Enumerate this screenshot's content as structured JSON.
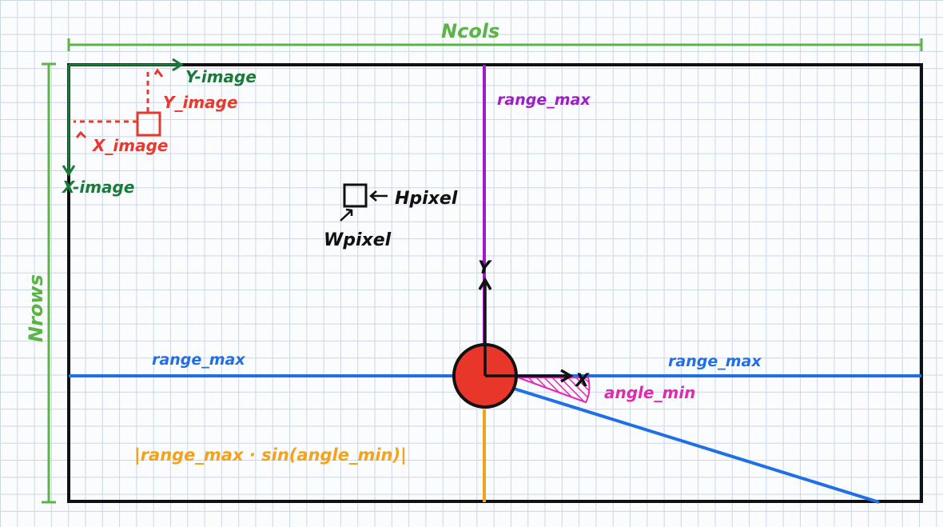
{
  "labels": {
    "n_cols": "Ncols",
    "n_rows": "Nrows",
    "y_image_axis": "Y-image",
    "x_image_axis": "X-image",
    "y_image_offset": "Y_image",
    "x_image_offset": "X_image",
    "h_pixel": "Hpixel",
    "w_pixel": "Wpixel",
    "range_max_vertical": "range_max",
    "range_max_left": "range_max",
    "range_max_right": "range_max",
    "axis_y": "Y",
    "axis_x": "X",
    "angle_min": "angle_min",
    "formula": "|range_max · sin(angle_min)|"
  },
  "colors": {
    "dimension": "#5cb448",
    "image_axes": "#1a7a3a",
    "image_offset": "#e63a2e",
    "range_vertical": "#9b1ec8",
    "range_horizontal": "#1f6fe6",
    "angle": "#e02ab4",
    "formula": "#f2a21c",
    "sensor": "#e8372a",
    "frame": "#111111"
  }
}
